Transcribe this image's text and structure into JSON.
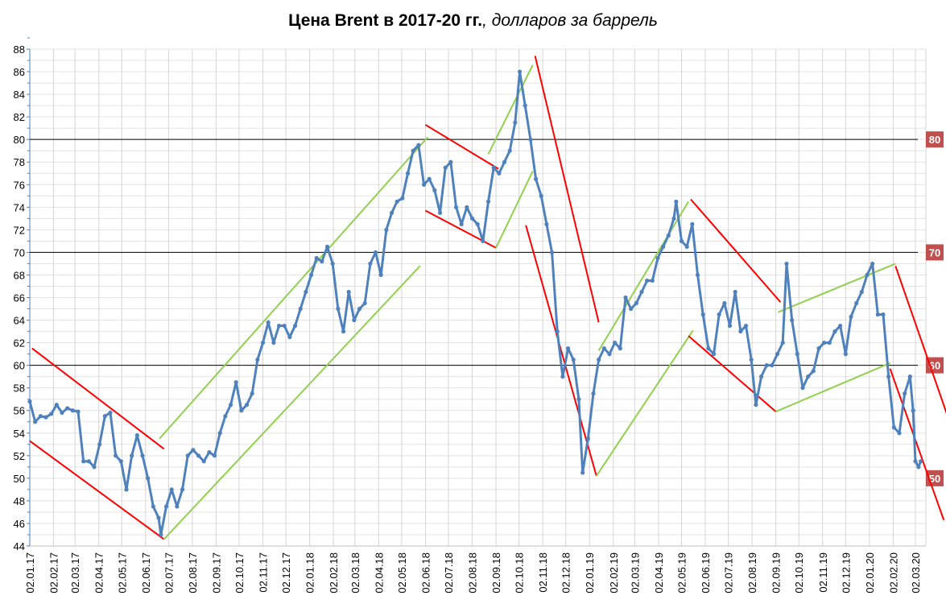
{
  "chart_data": {
    "type": "line",
    "title_bold": "Цена Brent в 2017-20 гг.",
    "title_italic": ", долларов за баррель",
    "xlabel": "",
    "ylabel": "",
    "ylim": [
      44,
      88
    ],
    "y_ticks": [
      44,
      46,
      48,
      50,
      52,
      54,
      56,
      58,
      60,
      62,
      64,
      66,
      68,
      70,
      72,
      74,
      76,
      78,
      80,
      82,
      84,
      86,
      88
    ],
    "x_ticks": [
      "02.01.17",
      "02.02.17",
      "02.03.17",
      "02.04.17",
      "02.05.17",
      "02.06.17",
      "02.07.17",
      "02.08.17",
      "02.09.17",
      "02.10.17",
      "02.11.17",
      "02.12.17",
      "02.01.18",
      "02.02.18",
      "02.03.18",
      "02.04.18",
      "02.05.18",
      "02.06.18",
      "02.07.18",
      "02.08.18",
      "02.09.18",
      "02.10.18",
      "02.11.18",
      "02.12.18",
      "02.01.19",
      "02.02.19",
      "02.03.19",
      "02.04.19",
      "02.05.19",
      "02.06.19",
      "02.07.19",
      "02.08.19",
      "02.09.19",
      "02.10.19",
      "02.11.19",
      "02.12.19",
      "02.01.20",
      "02.02.20",
      "02.03.20"
    ],
    "grid": true,
    "series_color": "#4f81bd",
    "series": [
      [
        "02.01.17",
        56.8
      ],
      [
        "09.01.17",
        55
      ],
      [
        "16.01.17",
        55.5
      ],
      [
        "23.01.17",
        55.4
      ],
      [
        "30.01.17",
        55.7
      ],
      [
        "06.02.17",
        56.5
      ],
      [
        "13.02.17",
        55.8
      ],
      [
        "20.02.17",
        56.2
      ],
      [
        "27.02.17",
        56
      ],
      [
        "06.03.17",
        55.9
      ],
      [
        "13.03.17",
        51.5
      ],
      [
        "20.03.17",
        51.5
      ],
      [
        "27.03.17",
        51
      ],
      [
        "03.04.17",
        53
      ],
      [
        "10.04.17",
        55.5
      ],
      [
        "17.04.17",
        55.8
      ],
      [
        "24.04.17",
        52
      ],
      [
        "01.05.17",
        51.5
      ],
      [
        "08.05.17",
        49
      ],
      [
        "15.05.17",
        52
      ],
      [
        "22.05.17",
        53.8
      ],
      [
        "29.05.17",
        52
      ],
      [
        "05.06.17",
        50
      ],
      [
        "12.06.17",
        47.5
      ],
      [
        "19.06.17",
        46.5
      ],
      [
        "22.06.17",
        45
      ],
      [
        "29.06.17",
        47.5
      ],
      [
        "06.07.17",
        49
      ],
      [
        "13.07.17",
        47.5
      ],
      [
        "20.07.17",
        49
      ],
      [
        "27.07.17",
        52
      ],
      [
        "03.08.17",
        52.5
      ],
      [
        "10.08.17",
        52
      ],
      [
        "17.08.17",
        51.5
      ],
      [
        "24.08.17",
        52.3
      ],
      [
        "31.08.17",
        52
      ],
      [
        "07.09.17",
        54
      ],
      [
        "14.09.17",
        55.5
      ],
      [
        "21.09.17",
        56.5
      ],
      [
        "28.09.17",
        58.5
      ],
      [
        "05.10.17",
        56
      ],
      [
        "12.10.17",
        56.5
      ],
      [
        "19.10.17",
        57.5
      ],
      [
        "26.10.17",
        60.5
      ],
      [
        "02.11.17",
        62
      ],
      [
        "09.11.17",
        63.8
      ],
      [
        "16.11.17",
        62
      ],
      [
        "23.11.17",
        63.5
      ],
      [
        "30.11.17",
        63.5
      ],
      [
        "07.12.17",
        62.5
      ],
      [
        "14.12.17",
        63.5
      ],
      [
        "21.12.17",
        65
      ],
      [
        "28.12.17",
        66.5
      ],
      [
        "04.01.18",
        68
      ],
      [
        "11.01.18",
        69.5
      ],
      [
        "18.01.18",
        69.2
      ],
      [
        "25.01.18",
        70.5
      ],
      [
        "01.02.18",
        69
      ],
      [
        "08.02.18",
        65
      ],
      [
        "15.02.18",
        63
      ],
      [
        "22.02.18",
        66.5
      ],
      [
        "01.03.18",
        64
      ],
      [
        "08.03.18",
        65
      ],
      [
        "15.03.18",
        65.5
      ],
      [
        "22.03.18",
        69
      ],
      [
        "29.03.18",
        70
      ],
      [
        "05.04.18",
        68
      ],
      [
        "12.04.18",
        72
      ],
      [
        "19.04.18",
        73.5
      ],
      [
        "26.04.18",
        74.5
      ],
      [
        "03.05.18",
        74.8
      ],
      [
        "10.05.18",
        77
      ],
      [
        "17.05.18",
        79
      ],
      [
        "24.05.18",
        79.5
      ],
      [
        "31.05.18",
        76
      ],
      [
        "07.06.18",
        76.5
      ],
      [
        "14.06.18",
        75.5
      ],
      [
        "21.06.18",
        73.5
      ],
      [
        "28.06.18",
        77.5
      ],
      [
        "05.07.18",
        78
      ],
      [
        "12.07.18",
        74
      ],
      [
        "19.07.18",
        72.5
      ],
      [
        "26.07.18",
        74
      ],
      [
        "02.08.18",
        73
      ],
      [
        "09.08.18",
        72.5
      ],
      [
        "16.08.18",
        71
      ],
      [
        "23.08.18",
        74.5
      ],
      [
        "30.08.18",
        77.5
      ],
      [
        "06.09.18",
        77
      ],
      [
        "13.09.18",
        78
      ],
      [
        "20.09.18",
        79
      ],
      [
        "27.09.18",
        81.5
      ],
      [
        "03.10.18",
        86
      ],
      [
        "10.10.18",
        83
      ],
      [
        "17.10.18",
        80
      ],
      [
        "24.10.18",
        76.5
      ],
      [
        "31.10.18",
        75
      ],
      [
        "07.11.18",
        72.5
      ],
      [
        "14.11.18",
        70
      ],
      [
        "21.11.18",
        63
      ],
      [
        "28.11.18",
        59
      ],
      [
        "05.12.18",
        61.5
      ],
      [
        "12.12.18",
        60.5
      ],
      [
        "19.12.18",
        57
      ],
      [
        "24.12.18",
        50.5
      ],
      [
        "31.12.18",
        53.5
      ],
      [
        "07.01.19",
        57.5
      ],
      [
        "14.01.19",
        60.5
      ],
      [
        "21.01.19",
        61.5
      ],
      [
        "28.01.19",
        61
      ],
      [
        "04.02.19",
        62
      ],
      [
        "11.02.19",
        61.5
      ],
      [
        "18.02.19",
        66
      ],
      [
        "25.02.19",
        65
      ],
      [
        "04.03.19",
        65.5
      ],
      [
        "11.03.19",
        66.5
      ],
      [
        "18.03.19",
        67.5
      ],
      [
        "25.03.19",
        67.5
      ],
      [
        "01.04.19",
        69.5
      ],
      [
        "08.04.19",
        70.5
      ],
      [
        "15.04.19",
        71.5
      ],
      [
        "22.04.19",
        73
      ],
      [
        "25.04.19",
        74.5
      ],
      [
        "02.05.19",
        71
      ],
      [
        "09.05.19",
        70.5
      ],
      [
        "16.05.19",
        72.5
      ],
      [
        "23.05.19",
        68
      ],
      [
        "30.05.19",
        64.5
      ],
      [
        "06.06.19",
        61.5
      ],
      [
        "13.06.19",
        61
      ],
      [
        "20.06.19",
        64.5
      ],
      [
        "27.06.19",
        65.5
      ],
      [
        "04.07.19",
        63.5
      ],
      [
        "11.07.19",
        66.5
      ],
      [
        "18.07.19",
        63
      ],
      [
        "25.07.19",
        63.5
      ],
      [
        "01.08.19",
        60.5
      ],
      [
        "07.08.19",
        56.5
      ],
      [
        "14.08.19",
        59
      ],
      [
        "21.08.19",
        60
      ],
      [
        "28.08.19",
        60
      ],
      [
        "04.09.19",
        61
      ],
      [
        "11.09.19",
        62
      ],
      [
        "16.09.19",
        69
      ],
      [
        "23.09.19",
        64
      ],
      [
        "30.09.19",
        61
      ],
      [
        "07.10.19",
        58
      ],
      [
        "14.10.19",
        59
      ],
      [
        "21.10.19",
        59.5
      ],
      [
        "28.10.19",
        61.5
      ],
      [
        "04.11.19",
        62
      ],
      [
        "11.11.19",
        62
      ],
      [
        "18.11.19",
        63
      ],
      [
        "25.11.19",
        63.5
      ],
      [
        "02.12.19",
        61
      ],
      [
        "09.12.19",
        64.3
      ],
      [
        "16.12.19",
        65.5
      ],
      [
        "23.12.19",
        66.5
      ],
      [
        "30.12.19",
        68
      ],
      [
        "06.01.20",
        69
      ],
      [
        "13.01.20",
        64.5
      ],
      [
        "20.01.20",
        64.5
      ],
      [
        "27.01.20",
        59
      ],
      [
        "03.02.20",
        54.5
      ],
      [
        "10.02.20",
        54
      ],
      [
        "17.02.20",
        57.5
      ],
      [
        "24.02.20",
        59
      ],
      [
        "28.02.20",
        56
      ],
      [
        "02.03.20",
        51.5
      ],
      [
        "06.03.20",
        51
      ],
      [
        "09.03.20",
        51.5
      ]
    ],
    "hlines": [
      {
        "value": 80,
        "label": "80"
      },
      {
        "value": 70,
        "label": "70"
      },
      {
        "value": 60,
        "label": "60"
      }
    ],
    "level_label_50": "50",
    "label_box_color": "#c0504d",
    "trend_lines": [
      {
        "color": "#ff0000",
        "from": [
          "05.01.17",
          61.5
        ],
        "to": [
          "26.06.17",
          52.6
        ]
      },
      {
        "color": "#ff0000",
        "from": [
          "02.01.17",
          53.3
        ],
        "to": [
          "26.06.17",
          44.6
        ]
      },
      {
        "color": "#92d050",
        "from": [
          "20.06.17",
          53.5
        ],
        "to": [
          "05.06.18",
          80.2
        ]
      },
      {
        "color": "#92d050",
        "from": [
          "26.06.17",
          44.6
        ],
        "to": [
          "26.05.18",
          68.8
        ]
      },
      {
        "color": "#ff0000",
        "from": [
          "02.06.18",
          81.3
        ],
        "to": [
          "05.09.18",
          77.4
        ]
      },
      {
        "color": "#ff0000",
        "from": [
          "02.06.18",
          73.7
        ],
        "to": [
          "02.09.18",
          70.4
        ]
      },
      {
        "color": "#92d050",
        "from": [
          "23.08.18",
          78.7
        ],
        "to": [
          "20.10.18",
          86.6
        ]
      },
      {
        "color": "#92d050",
        "from": [
          "02.09.18",
          70.4
        ],
        "to": [
          "20.10.18",
          77.2
        ]
      },
      {
        "color": "#ff0000",
        "from": [
          "23.10.18",
          87.4
        ],
        "to": [
          "14.01.19",
          63.8
        ]
      },
      {
        "color": "#ff0000",
        "from": [
          "11.10.18",
          72.4
        ],
        "to": [
          "11.01.19",
          50.2
        ]
      },
      {
        "color": "#92d050",
        "from": [
          "14.01.19",
          61.3
        ],
        "to": [
          "11.05.19",
          74.5
        ]
      },
      {
        "color": "#92d050",
        "from": [
          "11.01.19",
          50.2
        ],
        "to": [
          "17.05.19",
          63.1
        ]
      },
      {
        "color": "#ff0000",
        "from": [
          "14.05.19",
          74.7
        ],
        "to": [
          "08.09.19",
          65.6
        ]
      },
      {
        "color": "#ff0000",
        "from": [
          "11.05.19",
          62.6
        ],
        "to": [
          "02.09.19",
          55.9
        ]
      },
      {
        "color": "#92d050",
        "from": [
          "05.09.19",
          64.7
        ],
        "to": [
          "05.02.20",
          69
        ]
      },
      {
        "color": "#92d050",
        "from": [
          "02.09.19",
          55.9
        ],
        "to": [
          "29.01.20",
          60.2
        ]
      },
      {
        "color": "#ff0000",
        "from": [
          "05.02.20",
          68.8
        ],
        "to": [
          "14.04.20",
          55.3
        ]
      },
      {
        "color": "#ff0000",
        "from": [
          "29.01.20",
          59.7
        ],
        "to": [
          "08.04.20",
          46.3
        ]
      }
    ]
  }
}
